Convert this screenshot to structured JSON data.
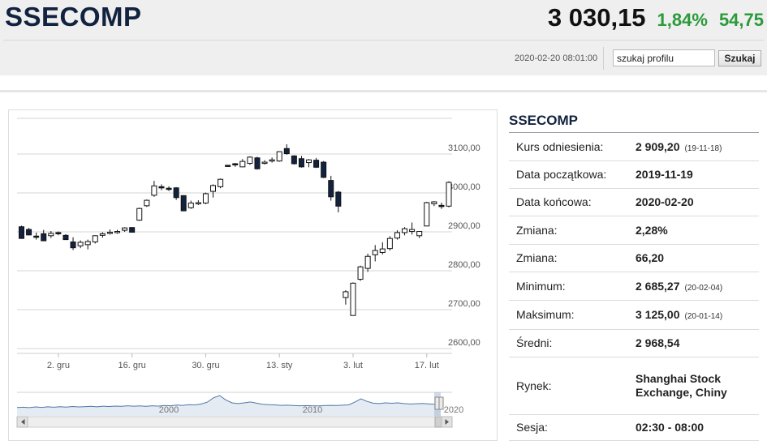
{
  "header": {
    "title": "SSECOMP",
    "price": "3 030,15",
    "change_pct": "1,84%",
    "change_abs": "54,75",
    "timestamp": "2020-02-20 08:01:00"
  },
  "search": {
    "value": "szukaj profilu",
    "button_label": "Szukaj"
  },
  "info": {
    "title": "SSECOMP",
    "rows": [
      {
        "label": "Kurs odniesienia:",
        "value": "2 909,20",
        "note": "(19-11-18)"
      },
      {
        "label": "Data początkowa:",
        "value": "2019-11-19",
        "note": ""
      },
      {
        "label": "Data końcowa:",
        "value": "2020-02-20",
        "note": ""
      },
      {
        "label": "Zmiana:",
        "value": "2,28%",
        "note": ""
      },
      {
        "label": "Zmiana:",
        "value": "66,20",
        "note": ""
      },
      {
        "label": "Minimum:",
        "value": "2 685,27",
        "note": "(20-02-04)"
      },
      {
        "label": "Maksimum:",
        "value": "3 125,00",
        "note": "(20-01-14)"
      },
      {
        "label": "Średni:",
        "value": "2 968,54",
        "note": ""
      },
      {
        "label": "Rynek:",
        "value": "Shanghai Stock Exchange, Chiny",
        "note": ""
      },
      {
        "label": "Sesja:",
        "value": "02:30 - 08:00",
        "note": ""
      }
    ]
  },
  "chart_data": {
    "type": "candlestick",
    "ylim": [
      2600,
      3200
    ],
    "y_ticks": [
      {
        "value": 2600,
        "label": "2600,00"
      },
      {
        "value": 2700,
        "label": "2700,00"
      },
      {
        "value": 2800,
        "label": "2800,00"
      },
      {
        "value": 2900,
        "label": "2900,00"
      },
      {
        "value": 3000,
        "label": "3000,00"
      },
      {
        "value": 3100,
        "label": "3100,00"
      }
    ],
    "x_ticks": [
      "2. gru",
      "16. gru",
      "30. gru",
      "13. sty",
      "3. lut",
      "17. lut"
    ],
    "candles": [
      {
        "o": 2913,
        "h": 2916,
        "l": 2882,
        "c": 2883
      },
      {
        "o": 2906,
        "h": 2910,
        "l": 2891,
        "c": 2892
      },
      {
        "o": 2889,
        "h": 2898,
        "l": 2880,
        "c": 2888
      },
      {
        "o": 2895,
        "h": 2905,
        "l": 2876,
        "c": 2877
      },
      {
        "o": 2890,
        "h": 2902,
        "l": 2884,
        "c": 2896
      },
      {
        "o": 2898,
        "h": 2901,
        "l": 2891,
        "c": 2897
      },
      {
        "o": 2891,
        "h": 2894,
        "l": 2879,
        "c": 2880
      },
      {
        "o": 2874,
        "h": 2886,
        "l": 2853,
        "c": 2859
      },
      {
        "o": 2864,
        "h": 2878,
        "l": 2858,
        "c": 2873
      },
      {
        "o": 2867,
        "h": 2880,
        "l": 2855,
        "c": 2875
      },
      {
        "o": 2874,
        "h": 2891,
        "l": 2870,
        "c": 2890
      },
      {
        "o": 2891,
        "h": 2899,
        "l": 2885,
        "c": 2895
      },
      {
        "o": 2898,
        "h": 2906,
        "l": 2893,
        "c": 2899
      },
      {
        "o": 2900,
        "h": 2905,
        "l": 2895,
        "c": 2901
      },
      {
        "o": 2904,
        "h": 2912,
        "l": 2900,
        "c": 2910
      },
      {
        "o": 2911,
        "h": 2912,
        "l": 2898,
        "c": 2899
      },
      {
        "o": 2930,
        "h": 2962,
        "l": 2928,
        "c": 2960
      },
      {
        "o": 2967,
        "h": 2983,
        "l": 2964,
        "c": 2981
      },
      {
        "o": 2994,
        "h": 3031,
        "l": 2990,
        "c": 3018
      },
      {
        "o": 3016,
        "h": 3022,
        "l": 3007,
        "c": 3013
      },
      {
        "o": 3012,
        "h": 3017,
        "l": 3005,
        "c": 3009
      },
      {
        "o": 3013,
        "h": 3015,
        "l": 2982,
        "c": 2988
      },
      {
        "o": 2993,
        "h": 2994,
        "l": 2953,
        "c": 2954
      },
      {
        "o": 2962,
        "h": 2980,
        "l": 2959,
        "c": 2974
      },
      {
        "o": 2972,
        "h": 2981,
        "l": 2969,
        "c": 2975
      },
      {
        "o": 2974,
        "h": 3001,
        "l": 2971,
        "c": 2998
      },
      {
        "o": 3004,
        "h": 3022,
        "l": 2988,
        "c": 3019
      },
      {
        "o": 3016,
        "h": 3037,
        "l": 3012,
        "c": 3035
      },
      {
        "o": 3071,
        "h": 3072,
        "l": 3068,
        "c": 3070
      },
      {
        "o": 3075,
        "h": 3077,
        "l": 3067,
        "c": 3074
      },
      {
        "o": 3067,
        "h": 3087,
        "l": 3066,
        "c": 3081
      },
      {
        "o": 3076,
        "h": 3094,
        "l": 3072,
        "c": 3092
      },
      {
        "o": 3090,
        "h": 3093,
        "l": 3060,
        "c": 3062
      },
      {
        "o": 3076,
        "h": 3084,
        "l": 3073,
        "c": 3079
      },
      {
        "o": 3083,
        "h": 3091,
        "l": 3078,
        "c": 3085
      },
      {
        "o": 3082,
        "h": 3107,
        "l": 3080,
        "c": 3106
      },
      {
        "o": 3114,
        "h": 3125,
        "l": 3098,
        "c": 3101
      },
      {
        "o": 3095,
        "h": 3097,
        "l": 3073,
        "c": 3075
      },
      {
        "o": 3088,
        "h": 3095,
        "l": 3065,
        "c": 3067
      },
      {
        "o": 3078,
        "h": 3087,
        "l": 3066,
        "c": 3085
      },
      {
        "o": 3084,
        "h": 3090,
        "l": 3064,
        "c": 3066
      },
      {
        "o": 3079,
        "h": 3082,
        "l": 3038,
        "c": 3040
      },
      {
        "o": 3032,
        "h": 3044,
        "l": 2980,
        "c": 2990
      },
      {
        "o": 3002,
        "h": 3005,
        "l": 2950,
        "c": 2966
      },
      {
        "o": 2731,
        "h": 2750,
        "l": 2713,
        "c": 2746
      },
      {
        "o": 2685,
        "h": 2770,
        "l": 2685,
        "c": 2768
      },
      {
        "o": 2778,
        "h": 2813,
        "l": 2774,
        "c": 2810
      },
      {
        "o": 2806,
        "h": 2844,
        "l": 2797,
        "c": 2837
      },
      {
        "o": 2841,
        "h": 2866,
        "l": 2824,
        "c": 2852
      },
      {
        "o": 2847,
        "h": 2873,
        "l": 2842,
        "c": 2856
      },
      {
        "o": 2857,
        "h": 2889,
        "l": 2852,
        "c": 2883
      },
      {
        "o": 2884,
        "h": 2904,
        "l": 2880,
        "c": 2898
      },
      {
        "o": 2898,
        "h": 2912,
        "l": 2891,
        "c": 2908
      },
      {
        "o": 2901,
        "h": 2924,
        "l": 2893,
        "c": 2906
      },
      {
        "o": 2890,
        "h": 2902,
        "l": 2884,
        "c": 2901
      },
      {
        "o": 2915,
        "h": 2977,
        "l": 2915,
        "c": 2975
      },
      {
        "o": 2972,
        "h": 2979,
        "l": 2966,
        "c": 2977
      },
      {
        "o": 2968,
        "h": 2975,
        "l": 2959,
        "c": 2965
      },
      {
        "o": 2966,
        "h": 3030,
        "l": 2963,
        "c": 3027
      }
    ],
    "navigator": {
      "labels": [
        "2000",
        "2010",
        "2020"
      ],
      "series": [
        0.18,
        0.2,
        0.17,
        0.22,
        0.19,
        0.23,
        0.2,
        0.24,
        0.21,
        0.25,
        0.22,
        0.24,
        0.26,
        0.23,
        0.27,
        0.25,
        0.28,
        0.26,
        0.3,
        0.27,
        0.29,
        0.26,
        0.3,
        0.28,
        0.32,
        0.3,
        0.35,
        0.33,
        0.38,
        0.36,
        0.42,
        0.55,
        0.85,
        1.0,
        0.7,
        0.5,
        0.45,
        0.5,
        0.56,
        0.48,
        0.4,
        0.38,
        0.36,
        0.33,
        0.34,
        0.32,
        0.3,
        0.31,
        0.3,
        0.29,
        0.31,
        0.33,
        0.32,
        0.34,
        0.36,
        0.55,
        0.78,
        0.6,
        0.48,
        0.45,
        0.5,
        0.47,
        0.5,
        0.45,
        0.42,
        0.44,
        0.46,
        0.43,
        0.4,
        0.43
      ]
    }
  }
}
